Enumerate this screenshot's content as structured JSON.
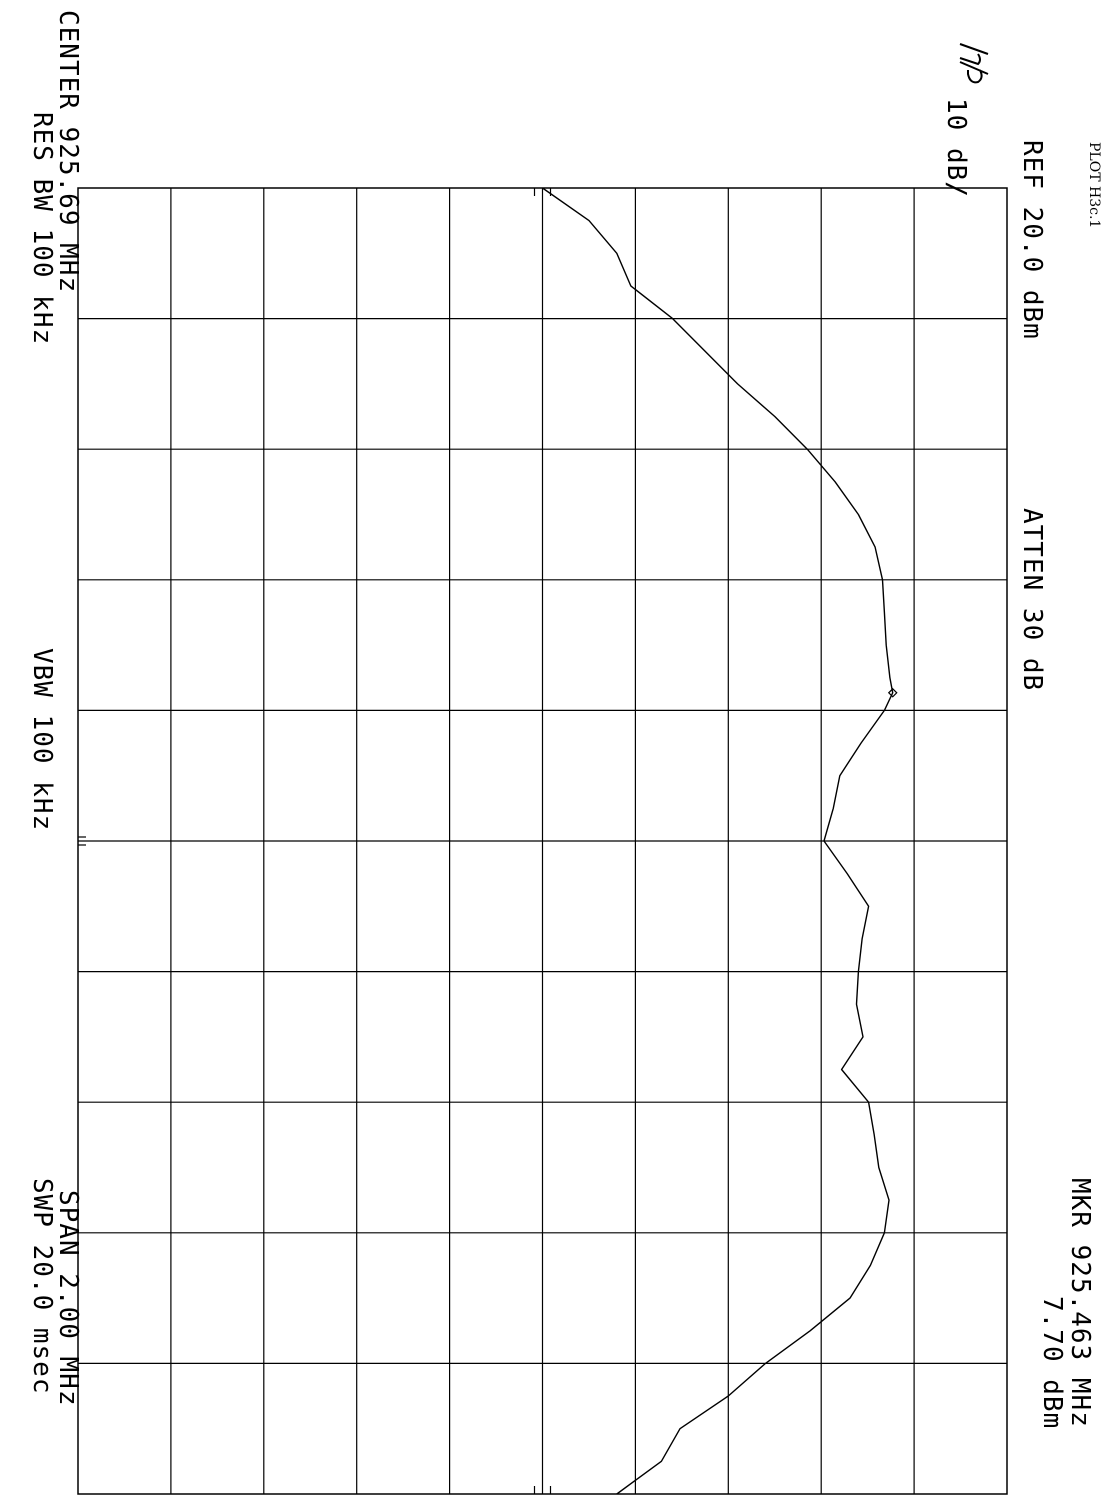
{
  "page": {
    "plot_id": "PLOT H3c.1",
    "logo": "hp"
  },
  "analyzer": {
    "scale": "10 dB/",
    "ref": "REF  20.0 dBm",
    "atten": "ATTEN 30 dB",
    "marker_freq": "MKR 925.463 MHz",
    "marker_level": "7.70 dBm",
    "center": "CENTER 925.69 MHz",
    "res_bw": "RES BW 100 kHz",
    "vbw": "VBW 100 kHz",
    "span": "SPAN 2.00 MHz",
    "sweep": "SWP 20.0 msec"
  },
  "chart_data": {
    "type": "line",
    "title": "",
    "xlabel": "",
    "ylabel": "",
    "x_unit": "MHz",
    "y_unit": "dBm",
    "xlim": [
      924.69,
      926.69
    ],
    "ylim": [
      -80,
      20
    ],
    "grid": true,
    "orientation": "rotated-90-clockwise",
    "series": [
      {
        "name": "",
        "x": [
          924.69,
          924.74,
          924.79,
          924.84,
          924.89,
          924.94,
          924.99,
          925.04,
          925.09,
          925.14,
          925.19,
          925.24,
          925.29,
          925.34,
          925.39,
          925.44,
          925.463,
          925.49,
          925.54,
          925.59,
          925.64,
          925.69,
          925.74,
          925.79,
          925.84,
          925.89,
          925.94,
          925.99,
          926.04,
          926.09,
          926.14,
          926.19,
          926.24,
          926.29,
          926.34,
          926.39,
          926.44,
          926.49,
          926.54,
          926.59,
          926.64,
          926.69
        ],
        "y": [
          -30.0,
          -25.0,
          -22.0,
          -20.5,
          -16.0,
          -12.5,
          -9.0,
          -5.0,
          -1.5,
          1.5,
          4.0,
          5.8,
          6.6,
          6.8,
          7.0,
          7.4,
          7.7,
          6.8,
          4.3,
          2.0,
          1.3,
          0.3,
          2.8,
          5.1,
          4.4,
          4.0,
          3.8,
          4.5,
          2.2,
          5.1,
          5.7,
          6.2,
          7.3,
          6.8,
          5.3,
          3.1,
          -1.2,
          -6.0,
          -10.0,
          -15.2,
          -17.2,
          -22.0
        ]
      }
    ],
    "marker": {
      "x": 925.463,
      "y": 7.7
    }
  }
}
